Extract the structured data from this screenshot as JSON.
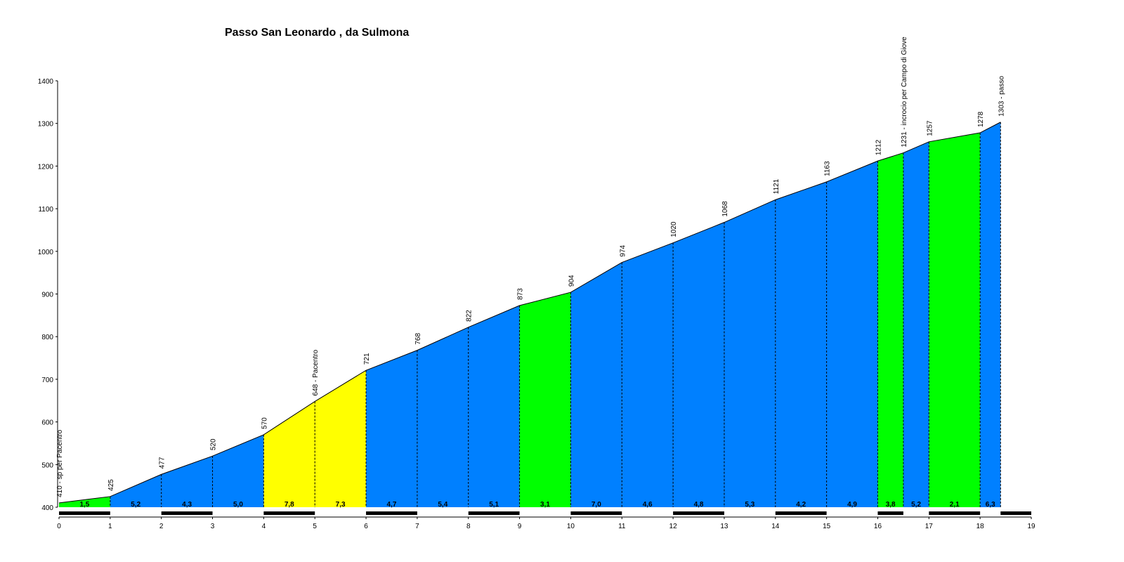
{
  "chart_data": {
    "type": "area",
    "title": "Passo San Leonardo , da Sulmona",
    "xlabel": "",
    "ylabel": "",
    "xlim": [
      0,
      19
    ],
    "ylim": [
      400,
      1400
    ],
    "x_ticks": [
      "0",
      "1",
      "2",
      "3",
      "4",
      "5",
      "6",
      "7",
      "8",
      "9",
      "10",
      "11",
      "12",
      "13",
      "14",
      "15",
      "16",
      "17",
      "18",
      "19"
    ],
    "y_ticks": [
      "400",
      "500",
      "600",
      "700",
      "800",
      "900",
      "1000",
      "1100",
      "1200",
      "1300",
      "1400"
    ],
    "points": [
      {
        "x": 0,
        "y": 410,
        "label": "410 - sp per Pacentro"
      },
      {
        "x": 1,
        "y": 425,
        "label": "425"
      },
      {
        "x": 2,
        "y": 477,
        "label": "477"
      },
      {
        "x": 3,
        "y": 520,
        "label": "520"
      },
      {
        "x": 4,
        "y": 570,
        "label": "570"
      },
      {
        "x": 5,
        "y": 648,
        "label": "648 - Pacentro"
      },
      {
        "x": 6,
        "y": 721,
        "label": "721"
      },
      {
        "x": 7,
        "y": 768,
        "label": "768"
      },
      {
        "x": 8,
        "y": 822,
        "label": "822"
      },
      {
        "x": 9,
        "y": 873,
        "label": "873"
      },
      {
        "x": 10,
        "y": 904,
        "label": "904"
      },
      {
        "x": 11,
        "y": 974,
        "label": "974"
      },
      {
        "x": 12,
        "y": 1020,
        "label": "1020"
      },
      {
        "x": 13,
        "y": 1068,
        "label": "1068"
      },
      {
        "x": 14,
        "y": 1121,
        "label": "1121"
      },
      {
        "x": 15,
        "y": 1163,
        "label": "1163"
      },
      {
        "x": 16,
        "y": 1212,
        "label": "1212"
      },
      {
        "x": 16.5,
        "y": 1231,
        "label": "1231 - incrocio per Campo di Giove"
      },
      {
        "x": 17,
        "y": 1257,
        "label": "1257"
      },
      {
        "x": 18,
        "y": 1278,
        "label": "1278"
      },
      {
        "x": 18.4,
        "y": 1303,
        "label": "1303 - passo"
      }
    ],
    "segments": [
      {
        "from": 0,
        "to": 1,
        "gradient": "1,5",
        "color": "#00ff00"
      },
      {
        "from": 1,
        "to": 2,
        "gradient": "5,2",
        "color": "#0080ff"
      },
      {
        "from": 2,
        "to": 3,
        "gradient": "4,3",
        "color": "#0080ff"
      },
      {
        "from": 3,
        "to": 4,
        "gradient": "5,0",
        "color": "#0080ff"
      },
      {
        "from": 4,
        "to": 5,
        "gradient": "7,8",
        "color": "#ffff00"
      },
      {
        "from": 5,
        "to": 6,
        "gradient": "7,3",
        "color": "#ffff00"
      },
      {
        "from": 6,
        "to": 7,
        "gradient": "4,7",
        "color": "#0080ff"
      },
      {
        "from": 7,
        "to": 8,
        "gradient": "5,4",
        "color": "#0080ff"
      },
      {
        "from": 8,
        "to": 9,
        "gradient": "5,1",
        "color": "#0080ff"
      },
      {
        "from": 9,
        "to": 10,
        "gradient": "3,1",
        "color": "#00ff00"
      },
      {
        "from": 10,
        "to": 11,
        "gradient": "7,0",
        "color": "#0080ff"
      },
      {
        "from": 11,
        "to": 12,
        "gradient": "4,6",
        "color": "#0080ff"
      },
      {
        "from": 12,
        "to": 13,
        "gradient": "4,8",
        "color": "#0080ff"
      },
      {
        "from": 13,
        "to": 14,
        "gradient": "5,3",
        "color": "#0080ff"
      },
      {
        "from": 14,
        "to": 15,
        "gradient": "4,2",
        "color": "#0080ff"
      },
      {
        "from": 15,
        "to": 16,
        "gradient": "4,9",
        "color": "#0080ff"
      },
      {
        "from": 16,
        "to": 16.5,
        "gradient": "3,8",
        "color": "#00ff00"
      },
      {
        "from": 16.5,
        "to": 17,
        "gradient": "5,2",
        "color": "#0080ff"
      },
      {
        "from": 17,
        "to": 18,
        "gradient": "2,1",
        "color": "#00ff00"
      },
      {
        "from": 18,
        "to": 18.4,
        "gradient": "6,3",
        "color": "#0080ff"
      }
    ],
    "grid": false,
    "legend": "none"
  }
}
